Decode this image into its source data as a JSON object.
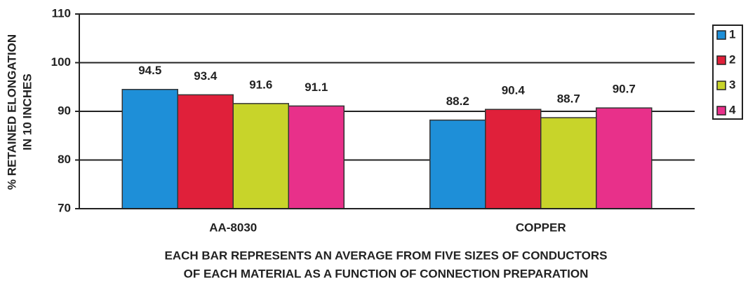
{
  "chart_data": {
    "type": "bar",
    "y_label": [
      "% RETAINED ELONGATION",
      "IN 10 INCHES"
    ],
    "x_label": [
      "EACH BAR REPRESENTS AN AVERAGE FROM FIVE SIZES OF CONDUCTORS",
      "OF EACH MATERIAL AS A FUNCTION OF CONNECTION PREPARATION"
    ],
    "categories": [
      "AA-8030",
      "COPPER"
    ],
    "series": [
      {
        "name": "1",
        "color": "#1e8fd8",
        "values": [
          94.5,
          88.2
        ]
      },
      {
        "name": "2",
        "color": "#e0203a",
        "values": [
          93.4,
          90.4
        ]
      },
      {
        "name": "3",
        "color": "#c8d42a",
        "values": [
          91.6,
          88.7
        ]
      },
      {
        "name": "4",
        "color": "#e8308a",
        "values": [
          91.1,
          90.7
        ]
      }
    ],
    "ylim": [
      70,
      110
    ],
    "yticks": [
      70,
      80,
      90,
      100,
      110
    ],
    "grid": true,
    "legend": "right"
  }
}
